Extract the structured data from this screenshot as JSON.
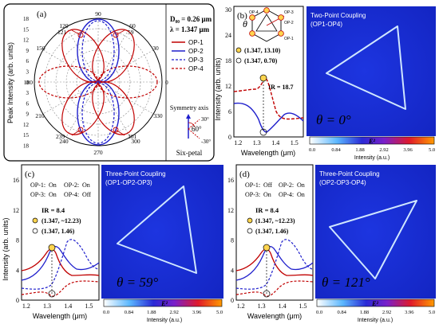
{
  "colors": {
    "red": "#c00000",
    "blue": "#1f1fcc",
    "field_bg": "#1a2bd6",
    "field_line": "#cfe6ff"
  },
  "panel_a": {
    "label": "(a)",
    "ylabel": "Peak Intensity (arb. units)",
    "y_ticks_top": [
      "18",
      "15",
      "12",
      "9",
      "6",
      "3",
      "0"
    ],
    "y_ticks_bottom": [
      "3",
      "6",
      "9",
      "12",
      "15",
      "18"
    ],
    "angle_labels": [
      "90",
      "60",
      "30",
      "0",
      "330",
      "300",
      "270",
      "240",
      "210",
      "180",
      "150",
      "120"
    ],
    "peak_angles": [
      "59",
      "121",
      "239",
      "301"
    ],
    "params": [
      "D₀₀ = 0.26 μm",
      "λ = 1.347 μm"
    ],
    "legend": [
      "OP-1",
      "OP-2",
      "OP-3",
      "OP-4"
    ],
    "symmetry_axis": "Symmetry axis",
    "axis_angles": [
      "30°",
      "60°",
      "-30°"
    ],
    "six_petal": "Six-petal"
  },
  "panel_b": {
    "label": "(b)",
    "theta": "θ",
    "op_labels": [
      "OP-4",
      "OP-3",
      "OP-2",
      "OP-1"
    ],
    "points": [
      "(1.347, 13.10)",
      "(1.347, 0.70)"
    ],
    "ir": "IR = 18.7",
    "xlabel": "Wavelength (μm)",
    "x_ticks": [
      "1.2",
      "1.3",
      "1.4",
      "1.5"
    ],
    "y_ticks": [
      "30",
      "24",
      "18",
      "12",
      "6",
      "0"
    ],
    "map_title": "Two-Point Coupling",
    "map_subtitle": "(OP1-OP4)",
    "theta_label": "θ = 0°"
  },
  "panel_c": {
    "label": "(c)",
    "op_states": [
      [
        "OP-1:",
        "On"
      ],
      [
        "OP-2:",
        "On"
      ],
      [
        "OP-3:",
        "On"
      ],
      [
        "OP-4:",
        "Off"
      ]
    ],
    "ir": "IR = 8.4",
    "points": [
      "(1.347, ~12.23)",
      "(1.347, 1.46)"
    ],
    "ylabel": "Intensity (arb. units)",
    "xlabel": "Wavelength (μm)",
    "x_ticks": [
      "1.2",
      "1.3",
      "1.4",
      "1.5"
    ],
    "y_ticks": [
      "16",
      "12",
      "8",
      "4",
      "0"
    ],
    "map_title": "Three-Point Coupling",
    "map_subtitle": "(OP1-OP2-OP3)",
    "theta_label": "θ = 59°"
  },
  "panel_d": {
    "label": "(d)",
    "op_states": [
      [
        "OP-1:",
        "Off"
      ],
      [
        "OP-2:",
        "On"
      ],
      [
        "OP-3:",
        "On"
      ],
      [
        "OP-4:",
        "On"
      ]
    ],
    "ir": "IR = 8.4",
    "points": [
      "(1.347, ~12.23)",
      "(1.347, 1.46)"
    ],
    "xlabel": "Wavelength (μm)",
    "x_ticks": [
      "1.2",
      "1.3",
      "1.4",
      "1.5"
    ],
    "y_ticks": [
      "16",
      "12",
      "8",
      "4",
      "0"
    ],
    "map_title": "Three-Point Coupling",
    "map_subtitle": "(OP2-OP3-OP4)",
    "theta_label": "θ = 121°"
  },
  "colorbar": {
    "label": "E²",
    "ticks": [
      "0.0",
      "0.84",
      "1.88",
      "2.92",
      "3.96",
      "5.0"
    ],
    "xlabel": "Intensity (a.u.)"
  }
}
